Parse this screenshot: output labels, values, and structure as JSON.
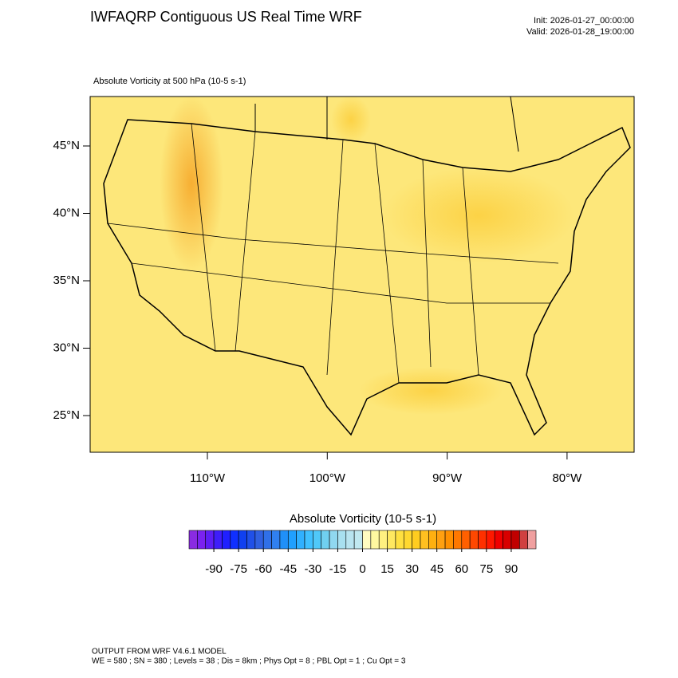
{
  "header": {
    "title": "IWFAQRP Contiguous US Real Time WRF",
    "init": "Init: 2026-01-27_00:00:00",
    "valid": "Valid: 2026-01-28_19:00:00"
  },
  "map": {
    "field_label": "Absolute Vorticity at 500 hPa   (10-5 s-1)",
    "lat_ticks": [
      {
        "value": 45,
        "label": "45°N"
      },
      {
        "value": 40,
        "label": "40°N"
      },
      {
        "value": 35,
        "label": "35°N"
      },
      {
        "value": 30,
        "label": "30°N"
      },
      {
        "value": 25,
        "label": "25°N"
      }
    ],
    "lon_ticks": [
      {
        "value": -110,
        "label": "110°W"
      },
      {
        "value": -100,
        "label": "100°W"
      },
      {
        "value": -90,
        "label": "90°W"
      },
      {
        "value": -80,
        "label": "80°W"
      }
    ]
  },
  "colorbar": {
    "title": "Absolute Vorticity  (10-5 s-1)",
    "range": [
      -105,
      105
    ],
    "colors": [
      "#8a2be2",
      "#7a22f0",
      "#5e1ef5",
      "#3f1efa",
      "#2020ff",
      "#1030ff",
      "#1040f0",
      "#2050e8",
      "#3060e0",
      "#3070e8",
      "#3080f0",
      "#2090f8",
      "#20a0ff",
      "#30b0ff",
      "#40c0ff",
      "#50c8f8",
      "#70d0f0",
      "#90d8f0",
      "#a8e0f0",
      "#b8e4f0",
      "#c0e8f0",
      "#fffcc0",
      "#fff8a0",
      "#fff080",
      "#ffe860",
      "#ffe040",
      "#ffd830",
      "#ffcc20",
      "#ffc020",
      "#ffb010",
      "#ffa010",
      "#ff9000",
      "#ff7800",
      "#ff6000",
      "#ff4800",
      "#ff3000",
      "#ff1800",
      "#f00000",
      "#d80000",
      "#c00000",
      "#d04040",
      "#f0a0a0"
    ],
    "ticks": [
      -90,
      -75,
      -60,
      -45,
      -30,
      -15,
      0,
      15,
      30,
      45,
      60,
      75,
      90
    ]
  },
  "footer": {
    "line1": "OUTPUT FROM WRF V4.6.1 MODEL",
    "line2": "WE = 580 ; SN = 380 ; Levels = 38 ; Dis = 8km ; Phys Opt = 8 ; PBL Opt = 1 ; Cu Opt = 3"
  }
}
